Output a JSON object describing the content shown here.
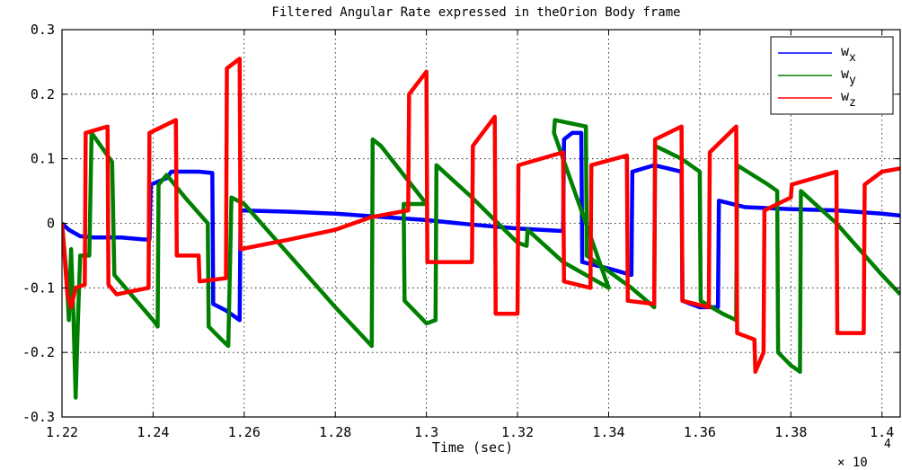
{
  "chart_data": {
    "type": "line",
    "title": "Filtered Angular Rate expressed in theOrion Body frame",
    "xlabel": "Time (sec)",
    "ylabel": "",
    "x_multiplier": "× 10",
    "x_multiplier_exponent": "4",
    "xlim": [
      1.22,
      1.404
    ],
    "ylim": [
      -0.3,
      0.3
    ],
    "x_ticks": [
      1.22,
      1.24,
      1.26,
      1.28,
      1.3,
      1.32,
      1.34,
      1.36,
      1.38,
      1.4
    ],
    "x_tick_labels": [
      "1.22",
      "1.24",
      "1.26",
      "1.28",
      "1.3",
      "1.32",
      "1.34",
      "1.36",
      "1.38",
      "1.4"
    ],
    "y_ticks": [
      -0.3,
      -0.2,
      -0.1,
      0,
      0.1,
      0.2,
      0.3
    ],
    "y_tick_labels": [
      "-0.3",
      "-0.2",
      "-0.1",
      "0",
      "0.1",
      "0.2",
      "0.3"
    ],
    "grid": true,
    "legend_position": "top-right",
    "legend": [
      {
        "base": "w",
        "sub": "x",
        "color": "#0000ff"
      },
      {
        "base": "w",
        "sub": "y",
        "color": "#008000"
      },
      {
        "base": "w",
        "sub": "z",
        "color": "#ff0000"
      }
    ],
    "series": [
      {
        "name": "w_x",
        "color": "#0000ff",
        "points": [
          [
            1.22,
            0.0
          ],
          [
            1.2215,
            -0.01
          ],
          [
            1.224,
            -0.02
          ],
          [
            1.227,
            -0.022
          ],
          [
            1.23,
            -0.022
          ],
          [
            1.233,
            -0.022
          ],
          [
            1.238,
            -0.025
          ],
          [
            1.2392,
            -0.025
          ],
          [
            1.2395,
            0.06
          ],
          [
            1.243,
            0.07
          ],
          [
            1.244,
            0.08
          ],
          [
            1.25,
            0.08
          ],
          [
            1.253,
            0.078
          ],
          [
            1.2532,
            -0.125
          ],
          [
            1.256,
            -0.135
          ],
          [
            1.257,
            -0.14
          ],
          [
            1.259,
            -0.15
          ],
          [
            1.2592,
            0.02
          ],
          [
            1.27,
            0.018
          ],
          [
            1.28,
            0.015
          ],
          [
            1.29,
            0.01
          ],
          [
            1.3,
            0.005
          ],
          [
            1.31,
            -0.002
          ],
          [
            1.32,
            -0.008
          ],
          [
            1.33,
            -0.012
          ],
          [
            1.3302,
            0.13
          ],
          [
            1.332,
            0.14
          ],
          [
            1.334,
            0.14
          ],
          [
            1.3342,
            -0.06
          ],
          [
            1.34,
            -0.07
          ],
          [
            1.345,
            -0.08
          ],
          [
            1.3452,
            0.08
          ],
          [
            1.35,
            0.09
          ],
          [
            1.356,
            0.08
          ],
          [
            1.3562,
            -0.12
          ],
          [
            1.36,
            -0.13
          ],
          [
            1.364,
            -0.13
          ],
          [
            1.3642,
            0.035
          ],
          [
            1.37,
            0.025
          ],
          [
            1.38,
            0.022
          ],
          [
            1.39,
            0.02
          ],
          [
            1.4,
            0.015
          ],
          [
            1.404,
            0.012
          ]
        ]
      },
      {
        "name": "w_y",
        "color": "#008000",
        "points": [
          [
            1.22,
            0.0
          ],
          [
            1.221,
            -0.08
          ],
          [
            1.2215,
            -0.15
          ],
          [
            1.222,
            -0.04
          ],
          [
            1.2225,
            -0.14
          ],
          [
            1.223,
            -0.27
          ],
          [
            1.2235,
            -0.15
          ],
          [
            1.224,
            -0.05
          ],
          [
            1.226,
            -0.05
          ],
          [
            1.2265,
            0.14
          ],
          [
            1.23,
            0.105
          ],
          [
            1.231,
            0.095
          ],
          [
            1.2315,
            -0.08
          ],
          [
            1.24,
            -0.15
          ],
          [
            1.241,
            -0.16
          ],
          [
            1.2412,
            0.06
          ],
          [
            1.243,
            0.075
          ],
          [
            1.247,
            0.04
          ],
          [
            1.252,
            0.0
          ],
          [
            1.2522,
            -0.16
          ],
          [
            1.255,
            -0.18
          ],
          [
            1.2565,
            -0.19
          ],
          [
            1.2572,
            0.04
          ],
          [
            1.26,
            0.03
          ],
          [
            1.27,
            -0.05
          ],
          [
            1.28,
            -0.13
          ],
          [
            1.288,
            -0.19
          ],
          [
            1.2882,
            0.13
          ],
          [
            1.29,
            0.12
          ],
          [
            1.3,
            0.03
          ],
          [
            1.295,
            0.03
          ],
          [
            1.2952,
            -0.12
          ],
          [
            1.3,
            -0.155
          ],
          [
            1.302,
            -0.15
          ],
          [
            1.3022,
            0.09
          ],
          [
            1.31,
            0.04
          ],
          [
            1.32,
            -0.03
          ],
          [
            1.322,
            -0.035
          ],
          [
            1.3222,
            -0.01
          ],
          [
            1.33,
            -0.06
          ],
          [
            1.34,
            -0.1
          ],
          [
            1.328,
            0.14
          ],
          [
            1.3282,
            0.16
          ],
          [
            1.335,
            0.15
          ],
          [
            1.3352,
            -0.05
          ],
          [
            1.345,
            -0.1
          ],
          [
            1.35,
            -0.13
          ],
          [
            1.3502,
            0.12
          ],
          [
            1.356,
            0.1
          ],
          [
            1.36,
            0.08
          ],
          [
            1.3602,
            -0.12
          ],
          [
            1.365,
            -0.14
          ],
          [
            1.368,
            -0.15
          ],
          [
            1.3682,
            0.09
          ],
          [
            1.375,
            0.06
          ],
          [
            1.377,
            0.05
          ],
          [
            1.3772,
            -0.2
          ],
          [
            1.38,
            -0.22
          ],
          [
            1.382,
            -0.23
          ],
          [
            1.3822,
            0.05
          ],
          [
            1.39,
            0.0
          ],
          [
            1.4,
            -0.08
          ],
          [
            1.404,
            -0.11
          ]
        ]
      },
      {
        "name": "w_z",
        "color": "#ff0000",
        "points": [
          [
            1.22,
            0.0
          ],
          [
            1.2212,
            -0.11
          ],
          [
            1.222,
            -0.13
          ],
          [
            1.223,
            -0.1
          ],
          [
            1.225,
            -0.095
          ],
          [
            1.2252,
            0.14
          ],
          [
            1.23,
            0.15
          ],
          [
            1.2302,
            -0.095
          ],
          [
            1.232,
            -0.11
          ],
          [
            1.239,
            -0.1
          ],
          [
            1.2392,
            0.14
          ],
          [
            1.245,
            0.16
          ],
          [
            1.2452,
            -0.05
          ],
          [
            1.25,
            -0.05
          ],
          [
            1.2502,
            -0.09
          ],
          [
            1.256,
            -0.085
          ],
          [
            1.2562,
            0.24
          ],
          [
            1.259,
            0.255
          ],
          [
            1.2592,
            -0.04
          ],
          [
            1.27,
            -0.025
          ],
          [
            1.28,
            -0.01
          ],
          [
            1.288,
            0.01
          ],
          [
            1.2882,
            0.01
          ],
          [
            1.296,
            0.02
          ],
          [
            1.2962,
            0.2
          ],
          [
            1.3,
            0.235
          ],
          [
            1.3002,
            -0.06
          ],
          [
            1.31,
            -0.06
          ],
          [
            1.3102,
            0.12
          ],
          [
            1.315,
            0.165
          ],
          [
            1.3152,
            -0.14
          ],
          [
            1.32,
            -0.14
          ],
          [
            1.3202,
            0.09
          ],
          [
            1.33,
            0.11
          ],
          [
            1.3302,
            -0.09
          ],
          [
            1.336,
            -0.1
          ],
          [
            1.3362,
            0.09
          ],
          [
            1.344,
            0.105
          ],
          [
            1.3442,
            -0.12
          ],
          [
            1.35,
            -0.125
          ],
          [
            1.3502,
            0.13
          ],
          [
            1.356,
            0.15
          ],
          [
            1.3562,
            -0.12
          ],
          [
            1.362,
            -0.13
          ],
          [
            1.3622,
            0.11
          ],
          [
            1.368,
            0.15
          ],
          [
            1.3682,
            -0.17
          ],
          [
            1.372,
            -0.18
          ],
          [
            1.3722,
            -0.23
          ],
          [
            1.374,
            -0.2
          ],
          [
            1.3742,
            0.02
          ],
          [
            1.38,
            0.04
          ],
          [
            1.3802,
            0.06
          ],
          [
            1.39,
            0.08
          ],
          [
            1.3902,
            -0.17
          ],
          [
            1.396,
            -0.17
          ],
          [
            1.3962,
            0.06
          ],
          [
            1.4,
            0.08
          ],
          [
            1.404,
            0.085
          ]
        ]
      }
    ]
  }
}
